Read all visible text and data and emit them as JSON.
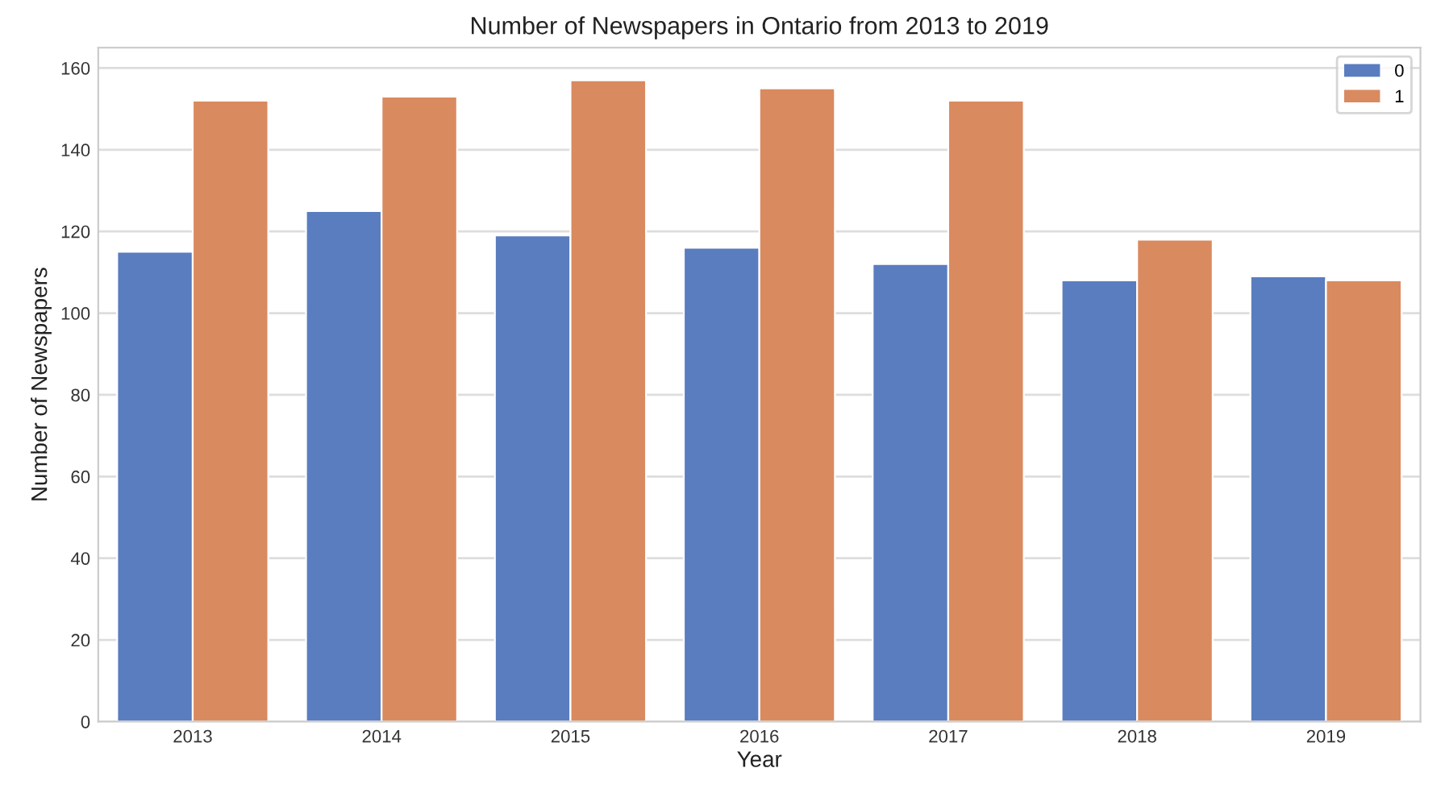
{
  "chart_data": {
    "type": "bar",
    "title": "Number of Newspapers in Ontario from 2013 to 2019",
    "xlabel": "Year",
    "ylabel": "Number of Newspapers",
    "categories": [
      "2013",
      "2014",
      "2015",
      "2016",
      "2017",
      "2018",
      "2019"
    ],
    "series": [
      {
        "name": "0",
        "color": "#5a7dc0",
        "values": [
          115,
          125,
          119,
          116,
          112,
          108,
          109
        ]
      },
      {
        "name": "1",
        "color": "#d98a5f",
        "values": [
          152,
          153,
          157,
          155,
          152,
          118,
          108
        ]
      }
    ],
    "ylim": [
      0,
      165
    ],
    "yticks": [
      0,
      20,
      40,
      60,
      80,
      100,
      120,
      140,
      160
    ],
    "grid": "y",
    "legend": "top right"
  }
}
